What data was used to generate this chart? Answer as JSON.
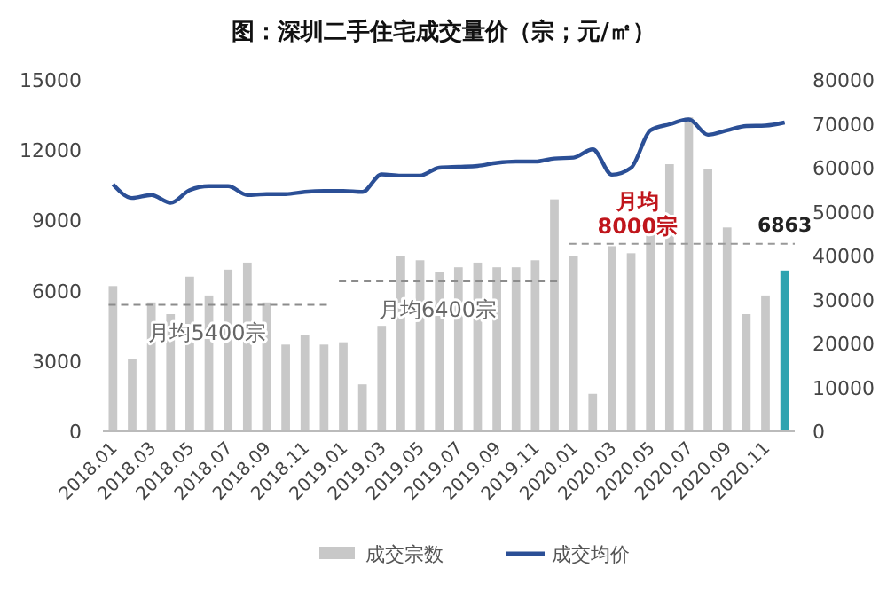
{
  "chart_data": {
    "type": "bar",
    "title": "图：深圳二手住宅成交量价（宗；元/㎡）",
    "categories": [
      "2018.01",
      null,
      "2018.03",
      null,
      "2018.05",
      null,
      "2018.07",
      null,
      "2018.09",
      null,
      "2018.11",
      null,
      "2019.01",
      null,
      "2019.03",
      null,
      "2019.05",
      null,
      "2019.07",
      null,
      "2019.09",
      null,
      "2019.11",
      null,
      "2020.01",
      null,
      "2020.03",
      null,
      "2020.05",
      null,
      "2020.07",
      null,
      "2020.09",
      null,
      "2020.11",
      null
    ],
    "series": [
      {
        "name": "成交宗数",
        "color": "#c8c8c8",
        "colors": [
          "#c8c8c8",
          "#c8c8c8",
          "#c8c8c8",
          "#c8c8c8",
          "#c8c8c8",
          "#c8c8c8",
          "#c8c8c8",
          "#c8c8c8",
          "#c8c8c8",
          "#c8c8c8",
          "#c8c8c8",
          "#c8c8c8",
          "#c8c8c8",
          "#c8c8c8",
          "#c8c8c8",
          "#c8c8c8",
          "#c8c8c8",
          "#c8c8c8",
          "#c8c8c8",
          "#c8c8c8",
          "#c8c8c8",
          "#c8c8c8",
          "#c8c8c8",
          "#c8c8c8",
          "#c8c8c8",
          "#c8c8c8",
          "#c8c8c8",
          "#c8c8c8",
          "#c8c8c8",
          "#c8c8c8",
          "#c8c8c8",
          "#c8c8c8",
          "#c8c8c8",
          "#c8c8c8",
          "#c8c8c8",
          "#2ea3b0"
        ],
        "values": [
          6200,
          3100,
          5500,
          5000,
          6600,
          5800,
          6900,
          7200,
          5500,
          3700,
          4100,
          3700,
          3800,
          2000,
          4500,
          7500,
          7300,
          6800,
          7000,
          7200,
          7000,
          7000,
          7300,
          9900,
          7500,
          1600,
          7900,
          7600,
          8500,
          11400,
          13400,
          11200,
          8700,
          5000,
          5800,
          6863
        ],
        "value_labels": [
          null,
          null,
          null,
          null,
          null,
          null,
          null,
          null,
          null,
          null,
          null,
          null,
          null,
          null,
          null,
          null,
          null,
          null,
          null,
          null,
          null,
          null,
          null,
          null,
          null,
          null,
          null,
          null,
          null,
          null,
          null,
          null,
          null,
          null,
          null,
          "6863"
        ]
      },
      {
        "name": "成交均价",
        "type": "line",
        "axis": "y2",
        "color": "#2b4f96",
        "values": [
          56200,
          53100,
          53800,
          52000,
          54900,
          55800,
          55800,
          53800,
          54000,
          54000,
          54500,
          54700,
          54700,
          54500,
          58500,
          58200,
          58200,
          60000,
          60200,
          60400,
          61100,
          61400,
          61400,
          62100,
          62300,
          64200,
          58400,
          60000,
          68500,
          69900,
          71000,
          67500,
          68500,
          69500,
          69600,
          70300
        ]
      }
    ],
    "ylim": [
      0,
      15000
    ],
    "yticks": [
      0,
      3000,
      6000,
      9000,
      12000,
      15000
    ],
    "y2lim": [
      0,
      80000
    ],
    "y2ticks": [
      0,
      10000,
      20000,
      30000,
      40000,
      50000,
      60000,
      70000,
      80000
    ],
    "ref_lines": [
      {
        "axis": "y",
        "value": 5400,
        "label": "月均5400宗",
        "color": "#8c8c8c",
        "line_style": "dashed"
      },
      {
        "axis": "y",
        "value": 6400,
        "label": "月均6400宗",
        "color": "#8c8c8c",
        "line_style": "dashed"
      },
      {
        "axis": "y",
        "value": 8000,
        "label": "月均\n8000宗",
        "color": "#999999",
        "line_style": "dashed"
      }
    ],
    "legend": "bottom"
  }
}
